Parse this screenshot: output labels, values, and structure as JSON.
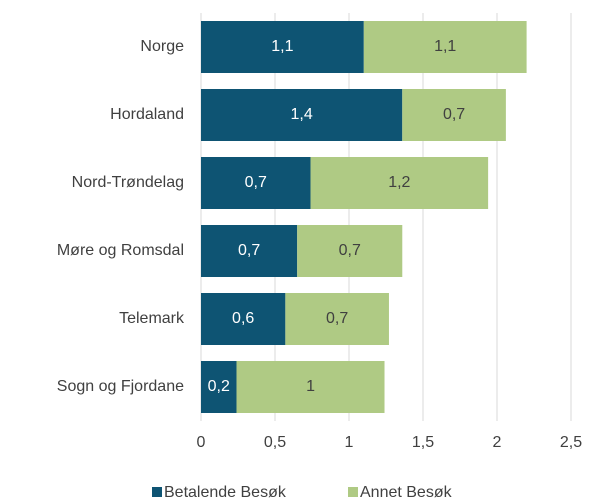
{
  "chart_data": {
    "type": "stacked-barh",
    "categories": [
      "Norge",
      "Hordaland",
      "Nord-Trøndelag",
      "Møre og Romsdal",
      "Telemark",
      "Sogn og Fjordane"
    ],
    "series": [
      {
        "name": "Betalende Besøk",
        "color": "#0e5473",
        "values": [
          1.1,
          1.36,
          0.74,
          0.65,
          0.57,
          0.24
        ],
        "value_labels": [
          "1,1",
          "1,4",
          "0,7",
          "0,7",
          "0,6",
          "0,2"
        ]
      },
      {
        "name": "Annet Besøk",
        "color": "#afca84",
        "values": [
          1.1,
          0.7,
          1.2,
          0.71,
          0.7,
          1.0
        ],
        "value_labels": [
          "1,1",
          "0,7",
          "1,2",
          "0,7",
          "0,7",
          "1"
        ]
      }
    ],
    "xlim": [
      0,
      2.5
    ],
    "xticks": [
      0,
      {
        "value": 0.5,
        "label": "0,5"
      },
      1,
      {
        "value": 1.5,
        "label": "1,5"
      },
      2,
      {
        "value": 2.5,
        "label": "2,5"
      }
    ],
    "grid": true,
    "legend": "bottom"
  }
}
